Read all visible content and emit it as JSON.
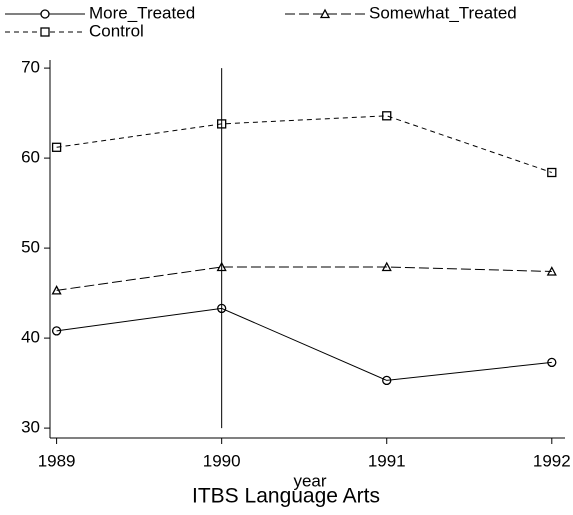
{
  "chart_data": {
    "type": "line",
    "title": "ITBS Language Arts",
    "x_label": "year",
    "x": [
      1989,
      1990,
      1991,
      1992
    ],
    "series": [
      {
        "name": "More_Treated",
        "color": "#000000",
        "marker": "circle",
        "dash": "solid",
        "values": [
          40.8,
          43.3,
          35.3,
          37.3
        ]
      },
      {
        "name": "Somewhat_Treated",
        "color": "#000000",
        "marker": "triangle",
        "dash": "long",
        "values": [
          45.3,
          47.9,
          47.9,
          47.4
        ]
      },
      {
        "name": "Control",
        "color": "#000000",
        "marker": "square",
        "dash": "short",
        "values": [
          61.2,
          63.8,
          64.7,
          58.4
        ]
      }
    ],
    "xlim": [
      1988.96,
      1992.08
    ],
    "xticks": [
      1989,
      1990,
      1991,
      1992
    ],
    "ylim": [
      28.9,
      70.9
    ],
    "yticks": [
      30,
      40,
      50,
      60,
      70
    ],
    "xline": 1990,
    "grid": false
  }
}
